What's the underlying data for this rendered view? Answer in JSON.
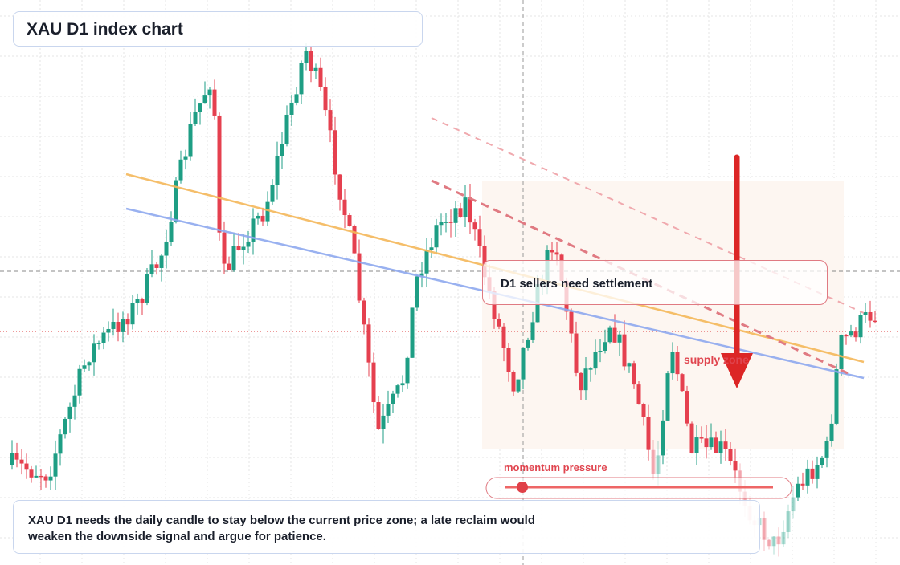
{
  "header": {
    "title": "XAU D1 index chart"
  },
  "annotations": {
    "callout": "D1 sellers need settlement",
    "zone": "supply zone",
    "momentum": "momentum pressure"
  },
  "note": "XAU D1 needs the daily candle to stay below the current price zone; a late reclaim would weaken the downside signal and argue for patience."
}
